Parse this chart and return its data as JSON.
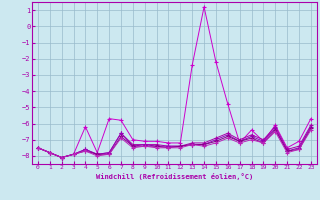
{
  "x": [
    0,
    1,
    2,
    3,
    4,
    5,
    6,
    7,
    8,
    9,
    10,
    11,
    12,
    13,
    14,
    15,
    16,
    17,
    18,
    19,
    20,
    21,
    22,
    23
  ],
  "series": [
    [
      -7.5,
      -7.8,
      -8.1,
      -7.9,
      -6.2,
      -7.8,
      -5.7,
      -5.8,
      -7.0,
      -7.1,
      -7.1,
      -7.2,
      -7.2,
      -2.4,
      1.2,
      -2.2,
      -4.8,
      -7.2,
      -6.4,
      -7.1,
      -6.1,
      -7.5,
      -7.1,
      -5.7
    ],
    [
      -7.5,
      -7.8,
      -8.1,
      -7.9,
      -7.6,
      -7.9,
      -7.8,
      -6.6,
      -7.3,
      -7.3,
      -7.3,
      -7.4,
      -7.4,
      -7.2,
      -7.2,
      -6.9,
      -6.6,
      -7.0,
      -6.7,
      -7.0,
      -6.2,
      -7.6,
      -7.4,
      -6.1
    ],
    [
      -7.5,
      -7.8,
      -8.1,
      -7.9,
      -7.6,
      -7.9,
      -7.8,
      -6.6,
      -7.4,
      -7.3,
      -7.4,
      -7.4,
      -7.4,
      -7.3,
      -7.3,
      -7.0,
      -6.7,
      -7.1,
      -6.8,
      -7.1,
      -6.3,
      -7.7,
      -7.5,
      -6.2
    ],
    [
      -7.5,
      -7.8,
      -8.1,
      -7.9,
      -7.7,
      -7.9,
      -7.9,
      -6.8,
      -7.4,
      -7.4,
      -7.4,
      -7.5,
      -7.4,
      -7.3,
      -7.3,
      -7.1,
      -6.8,
      -7.1,
      -6.9,
      -7.2,
      -6.4,
      -7.7,
      -7.6,
      -6.3
    ],
    [
      -7.5,
      -7.8,
      -8.1,
      -7.9,
      -7.7,
      -8.0,
      -7.9,
      -6.9,
      -7.5,
      -7.4,
      -7.5,
      -7.5,
      -7.5,
      -7.3,
      -7.4,
      -7.2,
      -6.9,
      -7.2,
      -7.0,
      -7.2,
      -6.5,
      -7.8,
      -7.6,
      -6.4
    ]
  ],
  "line_color": "#aa00aa",
  "background_color": "#cce8f0",
  "grid_color": "#99bbcc",
  "xlabel": "Windchill (Refroidissement éolien,°C)",
  "ylim": [
    -8.5,
    1.5
  ],
  "yticks": [
    1,
    0,
    -1,
    -2,
    -3,
    -4,
    -5,
    -6,
    -7,
    -8
  ],
  "xticks": [
    0,
    1,
    2,
    3,
    4,
    5,
    6,
    7,
    8,
    9,
    10,
    11,
    12,
    13,
    14,
    15,
    16,
    17,
    18,
    19,
    20,
    21,
    22,
    23
  ]
}
